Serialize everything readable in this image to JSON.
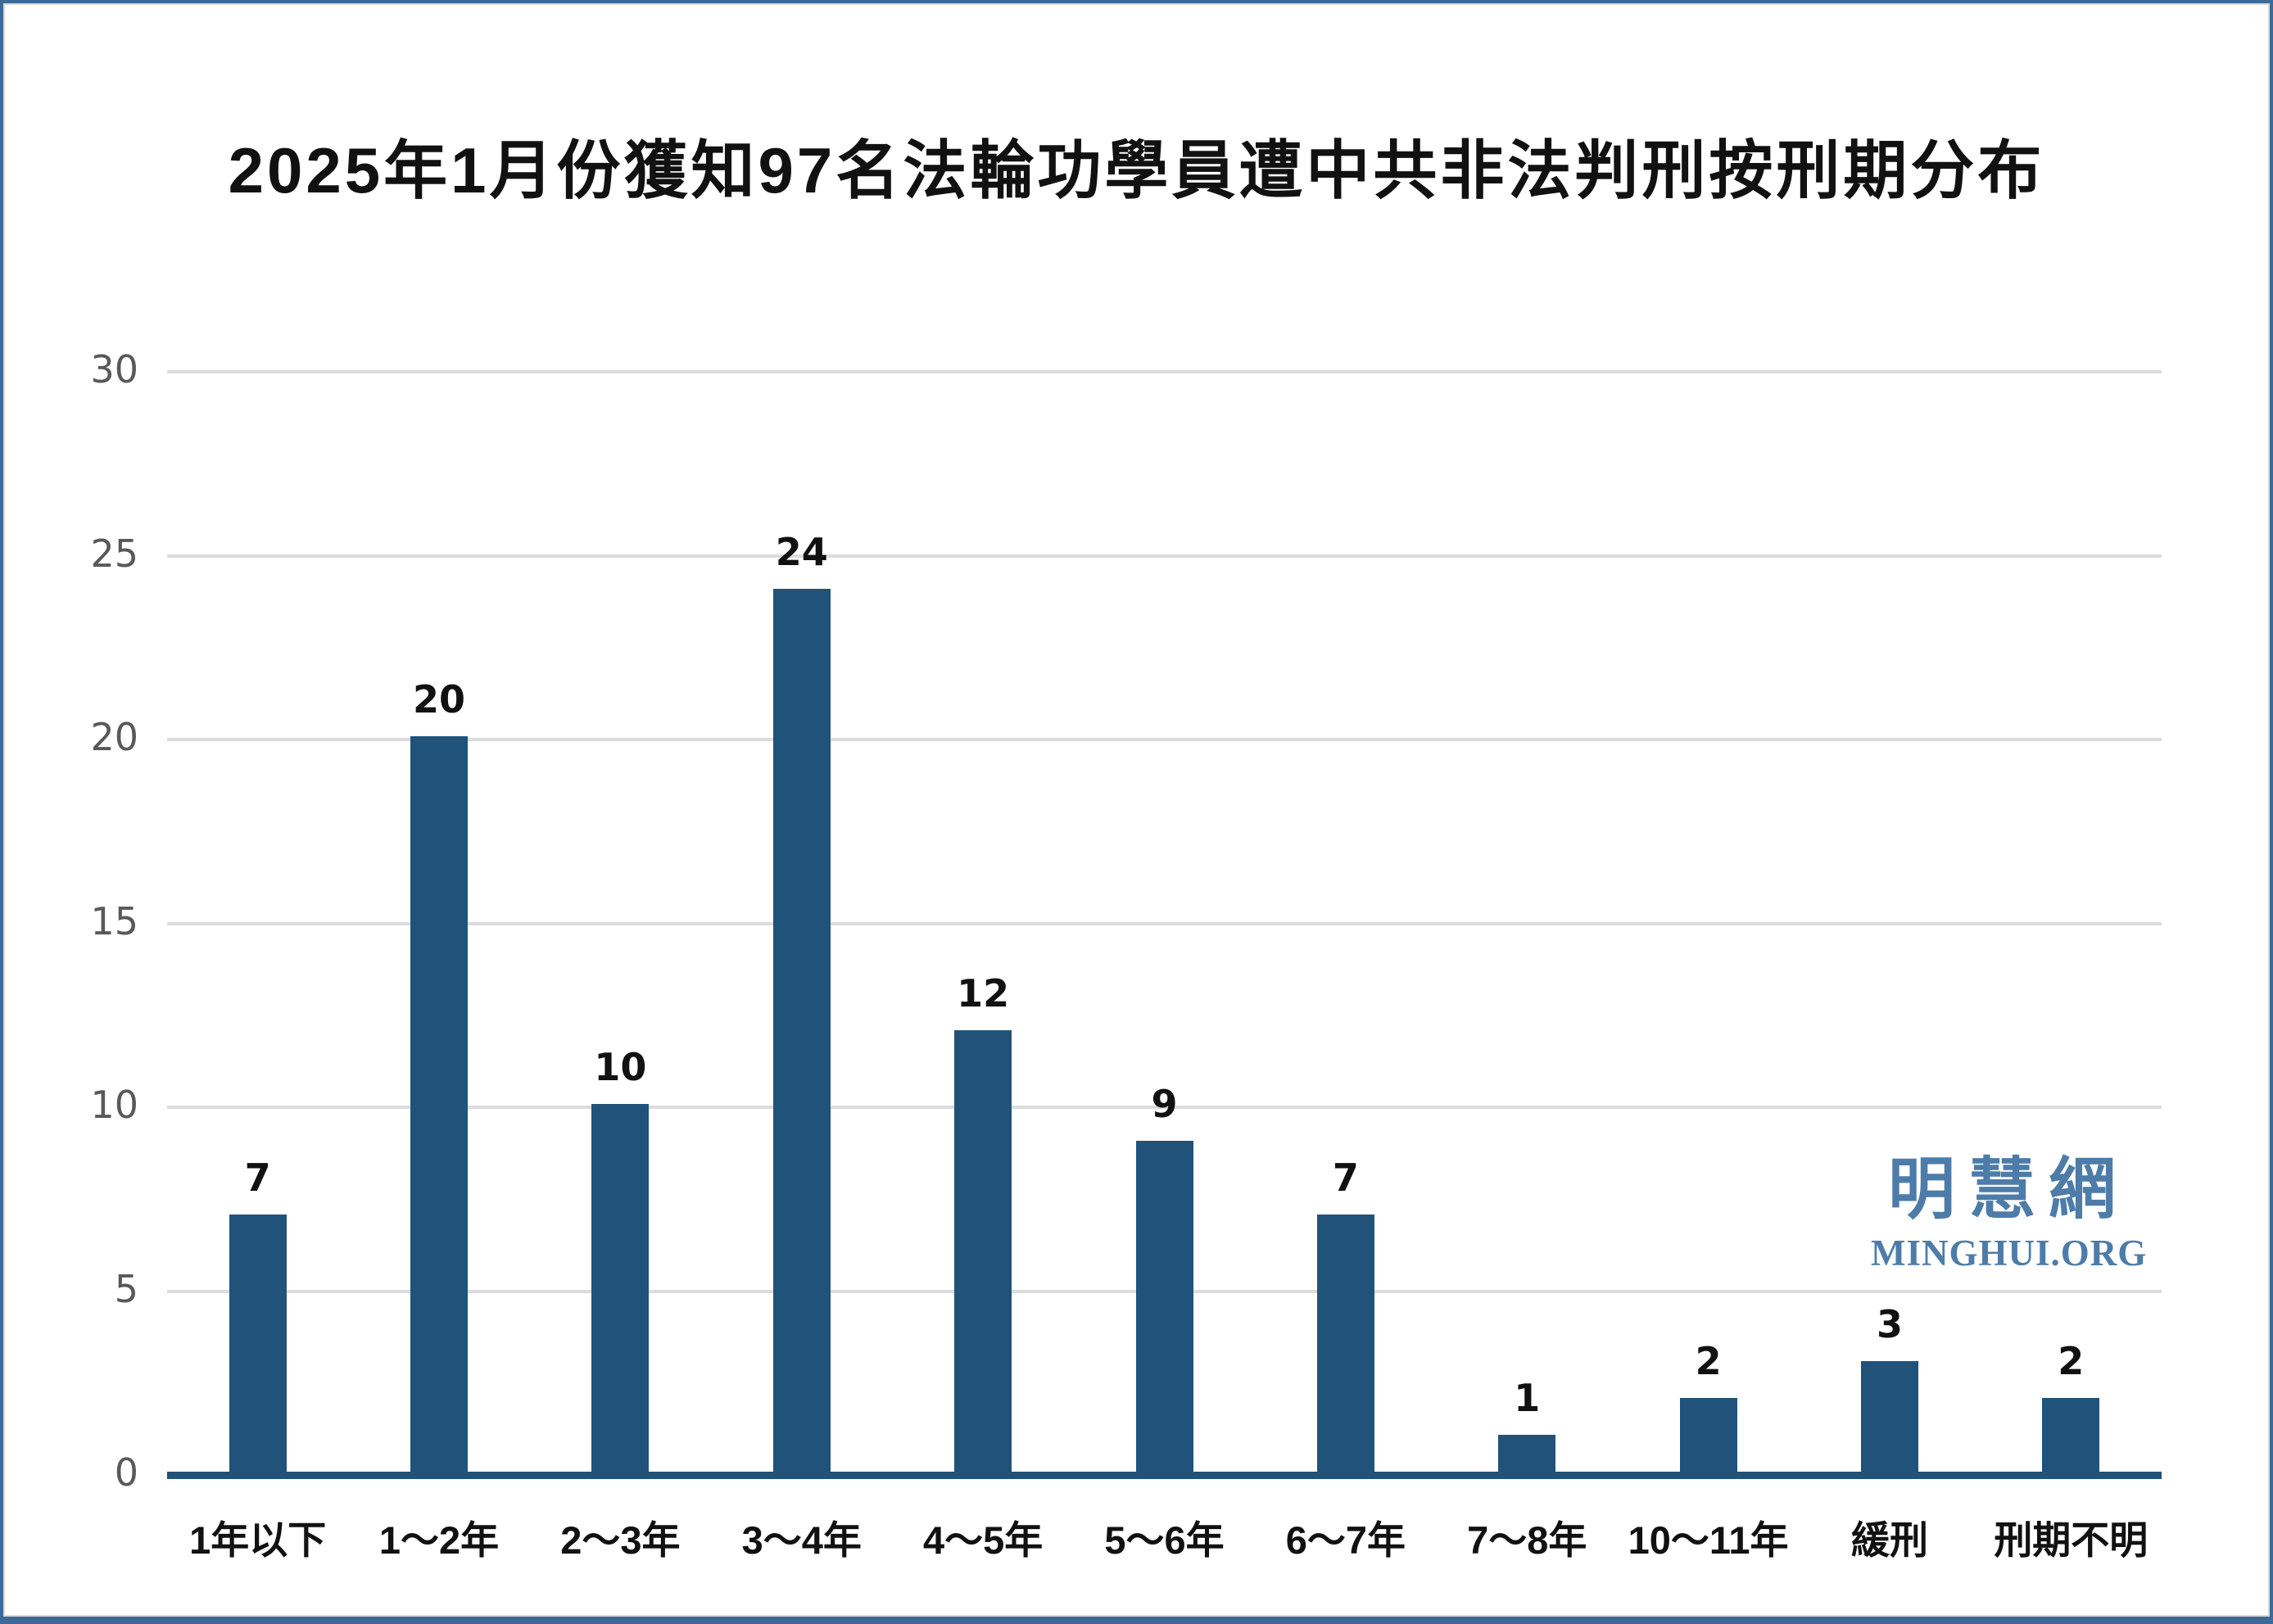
{
  "chart_data": {
    "type": "bar",
    "title": "2025年1月份獲知97名法輪功學員遭中共非法判刑按刑期分布",
    "categories": [
      "1年以下",
      "1～2年",
      "2～3年",
      "3～4年",
      "4～5年",
      "5～6年",
      "6～7年",
      "7～8年",
      "10～11年",
      "緩刑",
      "刑期不明"
    ],
    "values": [
      7,
      20,
      10,
      24,
      12,
      9,
      7,
      1,
      2,
      3,
      2
    ],
    "total_in_title": 97,
    "xlabel": "",
    "ylabel": "",
    "ylim": [
      0,
      30
    ],
    "yticks": [
      0,
      5,
      10,
      15,
      20,
      25,
      30
    ],
    "grid": "horizontal-only",
    "legend": "none",
    "value_labels": "above-bars",
    "bar_color": "#20527a",
    "axis_line_color": "#20527a",
    "gridline_color": "#dcdcdc",
    "y_tick_label_color": "#595959",
    "value_label_color": "#111111",
    "x_tick_label_color": "#111111"
  },
  "watermark": {
    "line1": "明慧網",
    "line2": "MINGHUI.ORG",
    "color": "#4d7ca9"
  },
  "frame": {
    "border_color": "#3d6a99"
  }
}
